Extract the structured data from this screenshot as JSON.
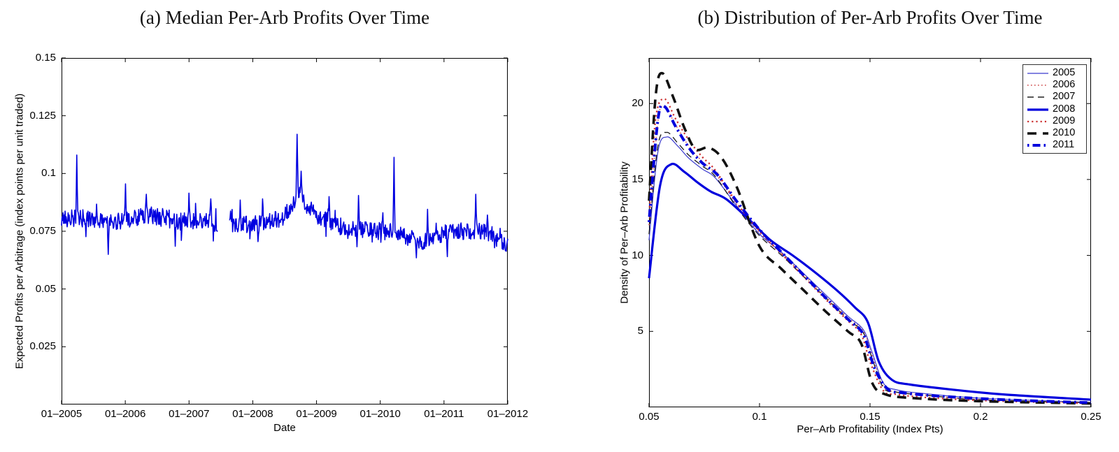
{
  "figure": {
    "background": "#ffffff",
    "accent_colors": {
      "blue": "#0000e0",
      "red": "#cc3333",
      "black": "#111111"
    }
  },
  "chart_data": [
    {
      "panel": "a",
      "type": "line",
      "title": "(a) Median Per-Arb Profits Over Time",
      "xlabel": "Date",
      "ylabel": "Expected Profits per Arbitrage (index points per unit traded)",
      "x_tick_labels": [
        "01–2005",
        "01–2006",
        "01–2007",
        "01–2008",
        "01–2009",
        "01–2010",
        "01–2011",
        "01–2012"
      ],
      "y_tick_labels": [
        "0.025",
        "0.05",
        "0.075",
        "0.1",
        "0.125",
        "0.15"
      ],
      "y_tick_values": [
        0.025,
        0.05,
        0.075,
        0.1,
        0.125,
        0.15
      ],
      "ylim": [
        0,
        0.15
      ],
      "x_range_years": [
        2005,
        2012
      ],
      "grid": false,
      "legend_position": "none",
      "line_color": "#0000e0",
      "line_width": 1.6,
      "series_spec": {
        "description": "Daily median per-arbitrage profits, noisy band near 0.08 index points drifting to ~0.07 by end 2011; data gap mid-2007; large spikes Apr 2005 (0.108), Oct 2008 (0.117), May 2010 (0.107).",
        "anchors": [
          [
            0,
            0.08
          ],
          [
            0.035,
            0.081
          ],
          [
            0.1,
            0.079
          ],
          [
            0.155,
            0.08
          ],
          [
            0.19,
            0.082
          ],
          [
            0.23,
            0.081
          ],
          [
            0.27,
            0.079
          ],
          [
            0.33,
            0.079
          ],
          [
            0.35,
            0.078
          ],
          [
            0.376,
            0.078
          ],
          [
            0.41,
            0.078
          ],
          [
            0.45,
            0.079
          ],
          [
            0.49,
            0.08
          ],
          [
            0.515,
            0.085
          ],
          [
            0.528,
            0.092
          ],
          [
            0.545,
            0.087
          ],
          [
            0.565,
            0.083
          ],
          [
            0.6,
            0.079
          ],
          [
            0.63,
            0.077
          ],
          [
            0.66,
            0.076
          ],
          [
            0.7,
            0.075
          ],
          [
            0.74,
            0.075
          ],
          [
            0.77,
            0.073
          ],
          [
            0.8,
            0.07
          ],
          [
            0.83,
            0.072
          ],
          [
            0.86,
            0.074
          ],
          [
            0.9,
            0.075
          ],
          [
            0.93,
            0.075
          ],
          [
            0.96,
            0.074
          ],
          [
            0.985,
            0.071
          ],
          [
            1.0,
            0.069
          ]
        ],
        "spikes": [
          [
            0.034,
            0.108
          ],
          [
            0.143,
            0.0955
          ],
          [
            0.19,
            0.091
          ],
          [
            0.285,
            0.0915
          ],
          [
            0.335,
            0.089
          ],
          [
            0.4,
            0.0885
          ],
          [
            0.45,
            0.089
          ],
          [
            0.528,
            0.117
          ],
          [
            0.537,
            0.101
          ],
          [
            0.6,
            0.09
          ],
          [
            0.665,
            0.0905
          ],
          [
            0.72,
            0.083
          ],
          [
            0.745,
            0.107
          ],
          [
            0.82,
            0.0845
          ],
          [
            0.928,
            0.091
          ],
          [
            0.955,
            0.082
          ]
        ],
        "dips": [
          [
            0.105,
            0.065
          ],
          [
            0.255,
            0.0685
          ],
          [
            0.44,
            0.0705
          ],
          [
            0.795,
            0.0635
          ],
          [
            0.865,
            0.064
          ],
          [
            0.995,
            0.0665
          ]
        ],
        "gap": [
          0.35,
          0.376
        ],
        "noise_amplitude": 0.0038,
        "noise_seed": 20080915,
        "n_points": 880
      }
    },
    {
      "panel": "b",
      "type": "line",
      "title": "(b) Distribution of Per-Arb Profits Over Time",
      "xlabel": "Per–Arb Profitability (Index Pts)",
      "ylabel": "Density of Per–Arb Profitability",
      "x_tick_labels": [
        "0.05",
        "0.1",
        "0.15",
        "0.2",
        "0.25"
      ],
      "x_tick_values": [
        0.05,
        0.1,
        0.15,
        0.2,
        0.25
      ],
      "y_tick_labels": [
        "5",
        "10",
        "15",
        "20"
      ],
      "y_tick_values": [
        5,
        10,
        15,
        20
      ],
      "xlim": [
        0.05,
        0.25
      ],
      "ylim": [
        0,
        23
      ],
      "grid": false,
      "legend_position": "top-right",
      "legend_entries": [
        "2005",
        "2006",
        "2007",
        "2008",
        "2009",
        "2010",
        "2011"
      ],
      "series": [
        {
          "name": "2005",
          "color": "#3a3ace",
          "style": "solid",
          "width": 1.2,
          "x": [
            0.05,
            0.054,
            0.058,
            0.063,
            0.068,
            0.074,
            0.08,
            0.09,
            0.1,
            0.11,
            0.12,
            0.13,
            0.14,
            0.147,
            0.151,
            0.156,
            0.162,
            0.175,
            0.2,
            0.25
          ],
          "y": [
            11.0,
            16.8,
            17.8,
            17.2,
            16.4,
            15.7,
            15.1,
            13.2,
            11.4,
            10.2,
            8.8,
            7.4,
            6.0,
            5.1,
            3.6,
            1.6,
            1.15,
            0.9,
            0.6,
            0.32
          ]
        },
        {
          "name": "2006",
          "color": "#cc4444",
          "style": "dotted",
          "width": 1.4,
          "x": [
            0.05,
            0.054,
            0.057,
            0.062,
            0.068,
            0.074,
            0.08,
            0.09,
            0.1,
            0.11,
            0.12,
            0.13,
            0.14,
            0.147,
            0.151,
            0.156,
            0.162,
            0.175,
            0.2,
            0.25
          ],
          "y": [
            12.0,
            18.8,
            19.8,
            18.6,
            17.2,
            16.2,
            15.4,
            13.3,
            11.5,
            10.1,
            8.7,
            7.3,
            5.9,
            5.0,
            3.4,
            1.4,
            1.0,
            0.8,
            0.5,
            0.28
          ]
        },
        {
          "name": "2007",
          "color": "#222222",
          "style": "dashed",
          "width": 1.4,
          "x": [
            0.05,
            0.054,
            0.058,
            0.063,
            0.068,
            0.074,
            0.08,
            0.09,
            0.1,
            0.11,
            0.12,
            0.13,
            0.14,
            0.147,
            0.151,
            0.156,
            0.162,
            0.175,
            0.2,
            0.25
          ],
          "y": [
            11.4,
            17.2,
            18.1,
            17.4,
            16.6,
            15.9,
            15.2,
            13.1,
            11.3,
            10.0,
            8.6,
            7.2,
            5.8,
            4.9,
            3.2,
            1.3,
            1.0,
            0.8,
            0.5,
            0.3
          ]
        },
        {
          "name": "2008",
          "color": "#0000dd",
          "style": "solid",
          "width": 3.2,
          "x": [
            0.05,
            0.055,
            0.06,
            0.066,
            0.072,
            0.078,
            0.085,
            0.095,
            0.105,
            0.115,
            0.125,
            0.135,
            0.143,
            0.149,
            0.154,
            0.16,
            0.168,
            0.185,
            0.21,
            0.25
          ],
          "y": [
            8.5,
            14.6,
            16.0,
            15.5,
            14.8,
            14.2,
            13.7,
            12.4,
            11.0,
            10.0,
            8.9,
            7.7,
            6.6,
            5.6,
            3.0,
            1.8,
            1.5,
            1.2,
            0.85,
            0.5
          ]
        },
        {
          "name": "2009",
          "color": "#cc3333",
          "style": "dotted",
          "width": 2.3,
          "x": [
            0.05,
            0.053,
            0.057,
            0.062,
            0.068,
            0.074,
            0.08,
            0.09,
            0.1,
            0.11,
            0.12,
            0.13,
            0.14,
            0.146,
            0.15,
            0.156,
            0.162,
            0.175,
            0.2,
            0.25
          ],
          "y": [
            12.6,
            19.0,
            20.3,
            19.0,
            17.6,
            16.5,
            15.6,
            13.4,
            11.6,
            10.1,
            8.6,
            7.1,
            5.7,
            4.8,
            3.0,
            1.1,
            0.85,
            0.65,
            0.45,
            0.25
          ]
        },
        {
          "name": "2010",
          "color": "#111111",
          "style": "dashed",
          "width": 3.6,
          "x": [
            0.05,
            0.053,
            0.056,
            0.061,
            0.066,
            0.071,
            0.077,
            0.083,
            0.09,
            0.1,
            0.11,
            0.12,
            0.13,
            0.14,
            0.146,
            0.151,
            0.157,
            0.17,
            0.2,
            0.25
          ],
          "y": [
            13.6,
            20.5,
            22.0,
            20.4,
            18.4,
            17.0,
            17.1,
            16.4,
            14.4,
            10.6,
            9.1,
            7.7,
            6.3,
            5.0,
            4.2,
            1.6,
            0.85,
            0.6,
            0.4,
            0.25
          ]
        },
        {
          "name": "2011",
          "color": "#0000dd",
          "style": "dashdot",
          "width": 4.0,
          "x": [
            0.05,
            0.054,
            0.057,
            0.062,
            0.068,
            0.074,
            0.081,
            0.09,
            0.1,
            0.11,
            0.12,
            0.13,
            0.14,
            0.147,
            0.152,
            0.158,
            0.165,
            0.18,
            0.21,
            0.25
          ],
          "y": [
            12.2,
            18.9,
            19.8,
            18.5,
            17.1,
            16.1,
            15.3,
            13.5,
            11.7,
            10.2,
            8.7,
            7.2,
            5.8,
            4.8,
            2.6,
            1.2,
            0.95,
            0.75,
            0.5,
            0.3
          ]
        }
      ]
    }
  ]
}
